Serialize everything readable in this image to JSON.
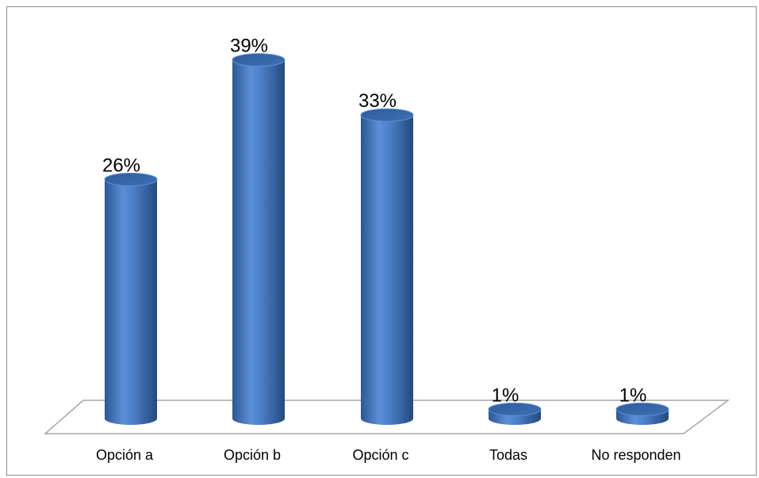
{
  "chart_data": {
    "type": "bar",
    "style": "3d-cylinder",
    "categories": [
      "Opción a",
      "Opción b",
      "Opción c",
      "Todas",
      "No responden"
    ],
    "values": [
      26,
      39,
      33,
      1,
      1
    ],
    "data_labels": [
      "26%",
      "39%",
      "33%",
      "1%",
      "1%"
    ],
    "title": "",
    "xlabel": "",
    "ylabel": "",
    "ylim": [
      0,
      40
    ],
    "grid": false,
    "legend": "none",
    "colors": {
      "bar": "#4f81bd",
      "bar_dark": "#2c5282",
      "bar_light": "#7ea6e0",
      "floor_border": "#a6a6a6",
      "frame_border": "#8c8c8c"
    }
  }
}
